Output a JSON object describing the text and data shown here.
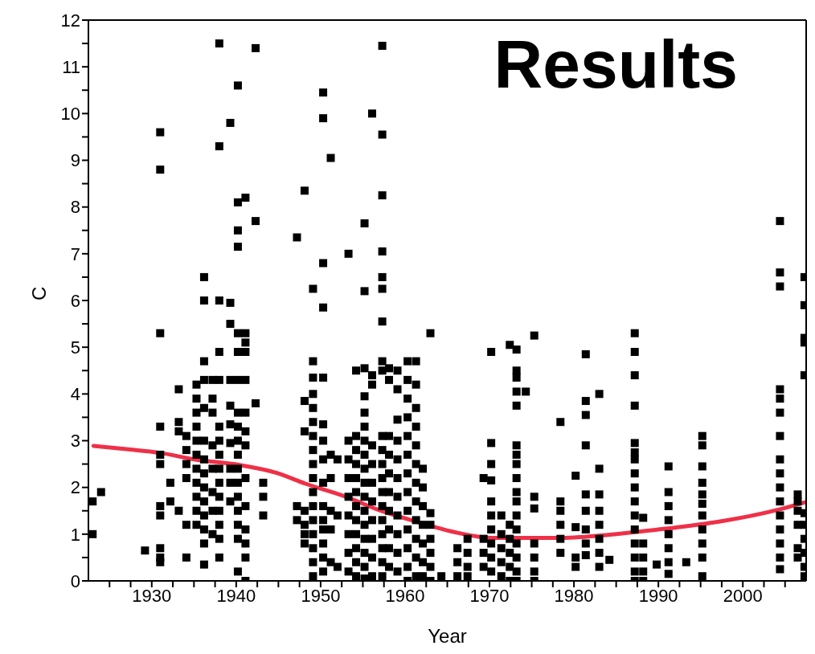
{
  "chart_data": {
    "type": "scatter",
    "title": "Results",
    "xlabel": "Year",
    "ylabel": "C",
    "xlim": [
      1922.5,
      2007.5
    ],
    "xticks": [
      {
        "value": 1925,
        "label": null
      },
      {
        "value": 1927.5,
        "label": null
      },
      1930,
      {
        "value": 1932.5,
        "label": null
      },
      {
        "value": 1935,
        "label": null
      },
      {
        "value": 1937.5,
        "label": null
      },
      1940,
      {
        "value": 1942.5,
        "label": null
      },
      {
        "value": 1945,
        "label": null
      },
      {
        "value": 1947.5,
        "label": null
      },
      1950,
      {
        "value": 1952.5,
        "label": null
      },
      {
        "value": 1955,
        "label": null
      },
      {
        "value": 1957.5,
        "label": null
      },
      1960,
      {
        "value": 1962.5,
        "label": null
      },
      {
        "value": 1965,
        "label": null
      },
      {
        "value": 1967.5,
        "label": null
      },
      1970,
      {
        "value": 1972.5,
        "label": null
      },
      {
        "value": 1975,
        "label": null
      },
      {
        "value": 1977.5,
        "label": null
      },
      1980,
      {
        "value": 1982.5,
        "label": null
      },
      {
        "value": 1985,
        "label": null
      },
      {
        "value": 1987.5,
        "label": null
      },
      1990,
      {
        "value": 1992.5,
        "label": null
      },
      {
        "value": 1995,
        "label": null
      },
      {
        "value": 1997.5,
        "label": null
      },
      2000,
      {
        "value": 2002.5,
        "label": null
      },
      {
        "value": 2005,
        "label": null
      }
    ],
    "ylim": [
      0,
      12
    ],
    "yticks": [
      0,
      {
        "value": 0.5,
        "label": null
      },
      1,
      {
        "value": 1.5,
        "label": null
      },
      2,
      {
        "value": 2.5,
        "label": null
      },
      3,
      {
        "value": 3.5,
        "label": null
      },
      4,
      {
        "value": 4.5,
        "label": null
      },
      5,
      {
        "value": 5.5,
        "label": null
      },
      6,
      {
        "value": 6.5,
        "label": null
      },
      7,
      {
        "value": 7.5,
        "label": null
      },
      8,
      {
        "value": 8.5,
        "label": null
      },
      9,
      {
        "value": 9.5,
        "label": null
      },
      10,
      {
        "value": 10.5,
        "label": null
      },
      11,
      {
        "value": 11.5,
        "label": null
      },
      12
    ],
    "series": [
      {
        "marker": "square",
        "color": "#000000",
        "x": [
          1923,
          1923,
          1924,
          1929.2,
          1931,
          1931,
          1931,
          1931,
          1931,
          1931,
          1931,
          1931,
          1931,
          1931,
          1931,
          1932.2,
          1932.2,
          1933.2,
          1933.2,
          1933.2,
          1933.2,
          1934.1,
          1934.1,
          1934.1,
          1934.1,
          1934.1,
          1934.1,
          1935.3,
          1935.3,
          1935.3,
          1935.3,
          1935.3,
          1935.3,
          1935.3,
          1935.3,
          1935.3,
          1935.3,
          1935.3,
          1936.2,
          1936.2,
          1936.2,
          1936.2,
          1936.2,
          1936.2,
          1936.2,
          1936.2,
          1936.2,
          1936.2,
          1936.2,
          1936.2,
          1936.2,
          1936.2,
          1937.2,
          1937.2,
          1937.2,
          1937.2,
          1937.2,
          1937.2,
          1937.2,
          1937.2,
          1938,
          1938,
          1938,
          1938,
          1938,
          1938,
          1938,
          1938,
          1938,
          1938,
          1938,
          1938,
          1938,
          1938,
          1938,
          1939.3,
          1939.3,
          1939.3,
          1939.3,
          1939.3,
          1939.3,
          1939.3,
          1939.3,
          1939.3,
          1939.3,
          1940.2,
          1940.2,
          1940.2,
          1940.2,
          1940.2,
          1940.2,
          1940.2,
          1940.2,
          1940.2,
          1940.2,
          1940.2,
          1940.2,
          1940.2,
          1940.2,
          1940.2,
          1940.2,
          1940.2,
          1940.2,
          1941.1,
          1941.1,
          1941.1,
          1941.1,
          1941.1,
          1941.1,
          1941.1,
          1941.1,
          1941.1,
          1941.1,
          1941.1,
          1941.1,
          1941.1,
          1941.1,
          1942.3,
          1942.3,
          1942.3,
          1943.2,
          1943.2,
          1943.2,
          1947.2,
          1947.2,
          1947.2,
          1948.1,
          1948.1,
          1948.1,
          1948.1,
          1948.1,
          1948.1,
          1948.1,
          1949.1,
          1949.1,
          1949.1,
          1949.1,
          1949.1,
          1949.1,
          1949.1,
          1949.1,
          1949.1,
          1949.1,
          1949.1,
          1949.1,
          1949.1,
          1949.1,
          1949.1,
          1949.1,
          1949.1,
          1950.3,
          1950.3,
          1950.3,
          1950.3,
          1950.3,
          1950.3,
          1950.3,
          1950.3,
          1950.3,
          1950.3,
          1950.3,
          1950.3,
          1950.3,
          1950.3,
          1950.3,
          1951.2,
          1951.2,
          1951.2,
          1951.2,
          1951.2,
          1951.2,
          1952,
          1952,
          1952,
          1953.3,
          1953.3,
          1953.3,
          1953.3,
          1953.3,
          1953.3,
          1953.3,
          1953.3,
          1953.3,
          1954.2,
          1954.2,
          1954.2,
          1954.2,
          1954.2,
          1954.2,
          1954.2,
          1954.2,
          1954.2,
          1954.2,
          1954.2,
          1954.2,
          1955.2,
          1955.2,
          1955.2,
          1955.2,
          1955.2,
          1955.2,
          1955.2,
          1955.2,
          1955.2,
          1955.2,
          1955.2,
          1955.2,
          1955.2,
          1955.2,
          1955.2,
          1955.2,
          1955.2,
          1956.1,
          1956.1,
          1956.1,
          1956.1,
          1956.1,
          1956.1,
          1956.1,
          1956.1,
          1956.1,
          1956.1,
          1956.1,
          1957.3,
          1957.3,
          1957.3,
          1957.3,
          1957.3,
          1957.3,
          1957.3,
          1957.3,
          1957.3,
          1957.3,
          1957.3,
          1957.3,
          1957.3,
          1957.3,
          1957.3,
          1957.3,
          1957.3,
          1957.3,
          1957.3,
          1957.3,
          1958.1,
          1958.1,
          1958.1,
          1958.1,
          1958.1,
          1958.1,
          1958.1,
          1958.1,
          1958.1,
          1958.1,
          1959.1,
          1959.1,
          1959.1,
          1959.1,
          1959.1,
          1959.1,
          1959.1,
          1959.1,
          1959.1,
          1959.1,
          1959.1,
          1960.3,
          1960.3,
          1960.3,
          1960.3,
          1960.3,
          1960.3,
          1960.3,
          1960.3,
          1960.3,
          1960.3,
          1960.3,
          1960.3,
          1960.3,
          1961.3,
          1961.3,
          1961.3,
          1961.3,
          1961.3,
          1961.3,
          1961.3,
          1961.3,
          1961.3,
          1961.3,
          1961.3,
          1961.3,
          1962.1,
          1962.1,
          1962.1,
          1962.1,
          1962.1,
          1962.1,
          1962.1,
          1963,
          1963,
          1963,
          1963,
          1963,
          1963,
          1963,
          1964.3,
          1966.2,
          1966.2,
          1966.2,
          1967.4,
          1967.4,
          1967.4,
          1967.4,
          1969.3,
          1969.3,
          1969.3,
          1969.3,
          1970.2,
          1970.2,
          1970.2,
          1970.2,
          1970.2,
          1970.2,
          1970.2,
          1970.2,
          1970.2,
          1970.2,
          1971.4,
          1971.4,
          1971.4,
          1971.4,
          1971.4,
          1972.4,
          1972.4,
          1972.4,
          1972.4,
          1972.4,
          1972.4,
          1973.2,
          1973.2,
          1973.2,
          1973.2,
          1973.2,
          1973.2,
          1973.2,
          1973.2,
          1973.2,
          1973.2,
          1973.2,
          1973.2,
          1973.2,
          1973.2,
          1973.2,
          1973.2,
          1973.2,
          1974.3,
          1975.3,
          1975.3,
          1975.3,
          1975.3,
          1975.3,
          1975.3,
          1975.3,
          1978.4,
          1978.4,
          1978.4,
          1978.4,
          1978.4,
          1978.4,
          1980.2,
          1980.2,
          1980.2,
          1980.2,
          1981.4,
          1981.4,
          1981.4,
          1981.4,
          1981.4,
          1981.4,
          1981.4,
          1981.4,
          1981.4,
          1983,
          1983,
          1983,
          1983,
          1983,
          1983,
          1983,
          1983,
          1984.2,
          1987.2,
          1987.2,
          1987.2,
          1987.2,
          1987.2,
          1987.2,
          1987.2,
          1987.2,
          1987.2,
          1987.2,
          1987.2,
          1987.2,
          1987.2,
          1987.2,
          1987.2,
          1987.2,
          1988.2,
          1988.2,
          1988.2,
          1988.2,
          1988.2,
          1989.8,
          1991.2,
          1991.2,
          1991.2,
          1991.2,
          1991.2,
          1991.2,
          1991.2,
          1991.2,
          1993.3,
          1995.2,
          1995.2,
          1995.2,
          1995.2,
          1995.2,
          1995.2,
          1995.2,
          1995.2,
          1995.2,
          1995.2,
          1995.2,
          2004.4,
          2004.4,
          2004.4,
          2004.4,
          2004.4,
          2004.4,
          2004.4,
          2004.4,
          2004.4,
          2004.4,
          2004.4,
          2004.4,
          2004.4,
          2004.4,
          2004.4,
          2004.4,
          2006.5,
          2006.5,
          2006.5,
          2006.5,
          2006.5,
          2006.5,
          2007.3,
          2007.3,
          2007.3,
          2007.3,
          2007.3,
          2007.3,
          2007.3,
          2007.3,
          2007.3,
          2007.3,
          2007.3
        ],
        "values": [
          1.7,
          1.0,
          1.9,
          0.65,
          9.6,
          8.8,
          5.3,
          3.3,
          2.7,
          2.5,
          1.6,
          1.4,
          0.7,
          0.5,
          0.4,
          2.1,
          1.7,
          4.1,
          3.4,
          3.2,
          1.5,
          3.1,
          2.8,
          2.5,
          2.2,
          1.2,
          0.5,
          4.2,
          3.9,
          3.6,
          3.3,
          3.0,
          2.7,
          2.4,
          2.1,
          1.8,
          1.5,
          1.2,
          6.5,
          6.0,
          4.7,
          4.3,
          3.7,
          3.0,
          2.6,
          2.3,
          2.0,
          1.7,
          1.4,
          1.1,
          0.8,
          0.35,
          4.3,
          3.9,
          3.6,
          2.9,
          2.4,
          1.9,
          1.5,
          1.0,
          11.5,
          9.3,
          6.0,
          4.9,
          4.3,
          3.3,
          3.0,
          2.7,
          2.4,
          2.1,
          1.8,
          1.5,
          1.2,
          0.9,
          0.5,
          9.8,
          5.95,
          5.5,
          4.3,
          3.75,
          3.35,
          2.95,
          2.4,
          2.1,
          1.7,
          10.6,
          8.1,
          7.5,
          7.15,
          5.3,
          4.9,
          4.3,
          3.6,
          3.3,
          3.0,
          2.7,
          2.4,
          2.1,
          1.8,
          1.5,
          1.2,
          0.9,
          0.2,
          8.2,
          5.3,
          5.1,
          4.9,
          4.3,
          3.6,
          3.2,
          2.9,
          2.2,
          1.6,
          1.1,
          0.8,
          0.5,
          0.0,
          11.4,
          7.7,
          3.8,
          2.1,
          1.8,
          1.4,
          7.35,
          1.6,
          1.3,
          8.35,
          3.85,
          3.2,
          1.5,
          1.2,
          1.0,
          0.8,
          6.25,
          4.7,
          4.35,
          4.0,
          3.7,
          3.4,
          3.1,
          2.8,
          2.5,
          2.2,
          1.9,
          1.6,
          1.3,
          1.0,
          0.7,
          0.4,
          0.1,
          10.45,
          9.9,
          6.8,
          5.85,
          4.35,
          3.35,
          3.0,
          2.6,
          2.1,
          1.6,
          1.3,
          1.1,
          0.8,
          0.5,
          0.2,
          9.05,
          2.7,
          2.2,
          1.5,
          1.1,
          0.4,
          2.6,
          1.4,
          0.3,
          7.0,
          3.0,
          2.6,
          2.2,
          1.8,
          1.4,
          1.0,
          0.6,
          0.2,
          4.5,
          3.1,
          2.8,
          2.5,
          2.2,
          1.9,
          1.6,
          1.3,
          1.0,
          0.7,
          0.4,
          0.1,
          7.65,
          6.2,
          4.55,
          3.95,
          3.6,
          3.3,
          3.0,
          2.7,
          2.4,
          2.1,
          1.8,
          1.5,
          1.2,
          0.9,
          0.6,
          0.3,
          0.05,
          10.0,
          4.4,
          4.2,
          2.9,
          2.5,
          2.1,
          1.7,
          1.3,
          0.9,
          0.5,
          0.1,
          11.45,
          9.55,
          8.25,
          7.05,
          6.5,
          6.25,
          5.55,
          4.7,
          4.5,
          3.1,
          2.8,
          2.5,
          2.2,
          1.9,
          1.6,
          1.3,
          1.0,
          0.7,
          0.4,
          0.1,
          4.55,
          4.3,
          3.1,
          2.7,
          2.3,
          1.9,
          1.5,
          1.1,
          0.7,
          0.3,
          4.5,
          4.1,
          3.45,
          3.0,
          2.6,
          2.2,
          1.8,
          1.4,
          1.0,
          0.6,
          0.2,
          4.7,
          4.3,
          3.9,
          3.5,
          3.1,
          2.7,
          2.3,
          1.9,
          1.5,
          1.1,
          0.7,
          0.3,
          0.0,
          4.7,
          4.2,
          3.7,
          3.3,
          2.9,
          2.5,
          2.1,
          1.7,
          1.3,
          0.9,
          0.5,
          0.1,
          2.4,
          2.0,
          1.6,
          1.2,
          0.8,
          0.4,
          0.1,
          5.3,
          1.45,
          1.2,
          0.9,
          0.6,
          0.3,
          0.0,
          0.1,
          0.7,
          0.4,
          0.1,
          0.9,
          0.6,
          0.3,
          0.1,
          2.2,
          0.9,
          0.6,
          0.3,
          4.9,
          2.95,
          2.5,
          2.15,
          1.7,
          1.4,
          1.1,
          0.8,
          0.5,
          0.2,
          1.4,
          1.0,
          0.7,
          0.4,
          0.1,
          5.05,
          1.2,
          0.9,
          0.6,
          0.3,
          0.0,
          4.95,
          4.5,
          4.35,
          4.05,
          3.75,
          2.9,
          2.7,
          2.5,
          2.2,
          1.9,
          1.7,
          1.4,
          1.1,
          0.8,
          0.5,
          0.2,
          0.0,
          4.05,
          5.25,
          1.8,
          1.55,
          0.8,
          0.5,
          0.2,
          0.0,
          3.4,
          1.7,
          1.5,
          1.2,
          0.9,
          0.6,
          2.25,
          1.15,
          0.5,
          0.3,
          4.85,
          3.85,
          3.55,
          2.9,
          1.85,
          1.5,
          1.1,
          0.8,
          0.55,
          4.0,
          2.4,
          1.85,
          1.5,
          1.2,
          0.9,
          0.6,
          0.3,
          0.45,
          5.3,
          4.9,
          4.4,
          3.75,
          2.95,
          2.75,
          2.6,
          2.3,
          2.0,
          1.7,
          1.4,
          1.1,
          0.8,
          0.5,
          0.2,
          0.0,
          1.35,
          0.8,
          0.5,
          0.2,
          0.0,
          0.35,
          2.45,
          1.9,
          1.6,
          1.3,
          1.0,
          0.7,
          0.4,
          0.15,
          0.4,
          3.1,
          2.9,
          2.45,
          2.1,
          1.85,
          1.65,
          1.4,
          1.1,
          0.8,
          0.5,
          0.1,
          7.7,
          6.6,
          6.3,
          4.1,
          3.9,
          3.6,
          3.1,
          2.6,
          2.3,
          2.0,
          1.7,
          1.4,
          1.1,
          0.8,
          0.5,
          0.25,
          1.85,
          1.7,
          1.5,
          1.2,
          0.7,
          0.5,
          6.5,
          5.9,
          5.2,
          5.1,
          4.4,
          1.45,
          1.2,
          0.9,
          0.6,
          0.3,
          0.1
        ]
      },
      {
        "type": "line",
        "color": "#ee3148",
        "x": [
          1923.1,
          1927,
          1931,
          1935,
          1940.4,
          1944.8,
          1948.2,
          1953,
          1957,
          1961.1,
          1966.2,
          1970.3,
          1978.1,
          1983.1,
          1987.5,
          1992.9,
          1997.6,
          2003.9,
          2007.3
        ],
        "values": [
          2.89,
          2.82,
          2.74,
          2.6,
          2.48,
          2.31,
          2.08,
          1.8,
          1.51,
          1.28,
          1.03,
          0.92,
          0.92,
          0.97,
          1.05,
          1.16,
          1.28,
          1.51,
          1.68
        ]
      }
    ]
  }
}
